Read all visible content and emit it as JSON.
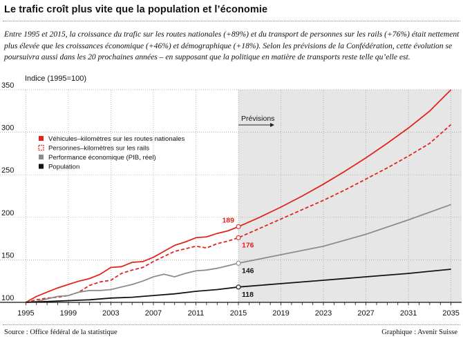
{
  "title": "Le trafic croît plus vite que la population et l’économie",
  "intro": "Entre 1995 et 2015, la croissance du trafic sur les routes nationales (+89%) et du transport de personnes sur les rails (+76%) était nettement plus élevée que les croissances économique (+46%) et démographique (+18%). Selon les prévisions de la Confédération, cette évolution se poursuivra aussi dans les 20 prochaines années – en supposant que la politique en matière de transports reste telle qu’elle est.",
  "footer": {
    "source": "Source : Office fédéral de la statistique",
    "credit": "Graphique : Avenir Suisse"
  },
  "colors": {
    "road": "#e2231a",
    "rail": "#e2231a",
    "gdp": "#8c8c8c",
    "population": "#111111",
    "forecast_bg": "#e6e6e6"
  },
  "chart_data": {
    "type": "line",
    "ylabel": "Indice (1995=100)",
    "xlim": [
      1994,
      2036
    ],
    "ylim": [
      100,
      350
    ],
    "yticks": [
      100,
      150,
      200,
      250,
      300,
      350
    ],
    "xticks": [
      1995,
      1999,
      2003,
      2007,
      2011,
      2015,
      2019,
      2023,
      2027,
      2031,
      2035
    ],
    "forecast_start": 2015,
    "forecast_label": "Prévisions",
    "legend_position": "upper-left",
    "series": [
      {
        "name": "Véhicules–kilomètres sur les routes nationales",
        "style": "solid",
        "color_key": "road",
        "x": [
          1995,
          1996,
          1997,
          1998,
          1999,
          2000,
          2001,
          2002,
          2003,
          2004,
          2005,
          2006,
          2007,
          2008,
          2009,
          2010,
          2011,
          2012,
          2013,
          2014,
          2015,
          2017,
          2019,
          2021,
          2023,
          2025,
          2027,
          2029,
          2031,
          2033,
          2035
        ],
        "y": [
          100,
          107,
          112,
          117,
          121,
          125,
          128,
          133,
          141,
          142,
          147,
          148,
          153,
          160,
          167,
          171,
          176,
          177,
          181,
          184,
          189,
          200,
          212,
          225,
          239,
          254,
          270,
          287,
          305,
          325,
          350
        ]
      },
      {
        "name": "Personnes–kilomètres sur les rails",
        "style": "dashed",
        "color_key": "rail",
        "x": [
          1995,
          1996,
          1997,
          1998,
          1999,
          2000,
          2001,
          2002,
          2003,
          2004,
          2005,
          2006,
          2007,
          2008,
          2009,
          2010,
          2011,
          2012,
          2013,
          2014,
          2015,
          2017,
          2019,
          2021,
          2023,
          2025,
          2027,
          2029,
          2031,
          2033,
          2035
        ],
        "y": [
          100,
          103,
          105,
          106,
          108,
          112,
          120,
          124,
          126,
          134,
          138,
          141,
          148,
          154,
          160,
          163,
          166,
          164,
          169,
          172,
          176,
          187,
          198,
          209,
          220,
          232,
          245,
          258,
          272,
          287,
          309
        ]
      },
      {
        "name": "Performance économique (PIB, réel)",
        "style": "solid",
        "color_key": "gdp",
        "x": [
          1995,
          1996,
          1997,
          1998,
          1999,
          2000,
          2001,
          2002,
          2003,
          2004,
          2005,
          2006,
          2007,
          2008,
          2009,
          2010,
          2011,
          2012,
          2013,
          2014,
          2015,
          2019,
          2023,
          2027,
          2031,
          2035
        ],
        "y": [
          100,
          101,
          104,
          107,
          108,
          112,
          114,
          114,
          115,
          118,
          121,
          125,
          130,
          133,
          130,
          134,
          137,
          138,
          140,
          143,
          146,
          156,
          166,
          180,
          197,
          215
        ]
      },
      {
        "name": "Population",
        "style": "solid",
        "color_key": "population",
        "x": [
          1995,
          1997,
          1999,
          2001,
          2003,
          2005,
          2007,
          2009,
          2011,
          2013,
          2015,
          2019,
          2023,
          2027,
          2031,
          2035
        ],
        "y": [
          100,
          101,
          102,
          103,
          105,
          106,
          108,
          110,
          113,
          115,
          118,
          122,
          126,
          130,
          134,
          139
        ]
      }
    ],
    "annotations": [
      {
        "x": 2015,
        "y": 189,
        "text": "189",
        "color_key": "road",
        "pos": "above-left"
      },
      {
        "x": 2015,
        "y": 176,
        "text": "176",
        "color_key": "rail",
        "pos": "below-right"
      },
      {
        "x": 2015,
        "y": 146,
        "text": "146",
        "color_key": "population",
        "pos": "below-right"
      },
      {
        "x": 2015,
        "y": 118,
        "text": "118",
        "color_key": "population",
        "pos": "below-right"
      }
    ]
  }
}
